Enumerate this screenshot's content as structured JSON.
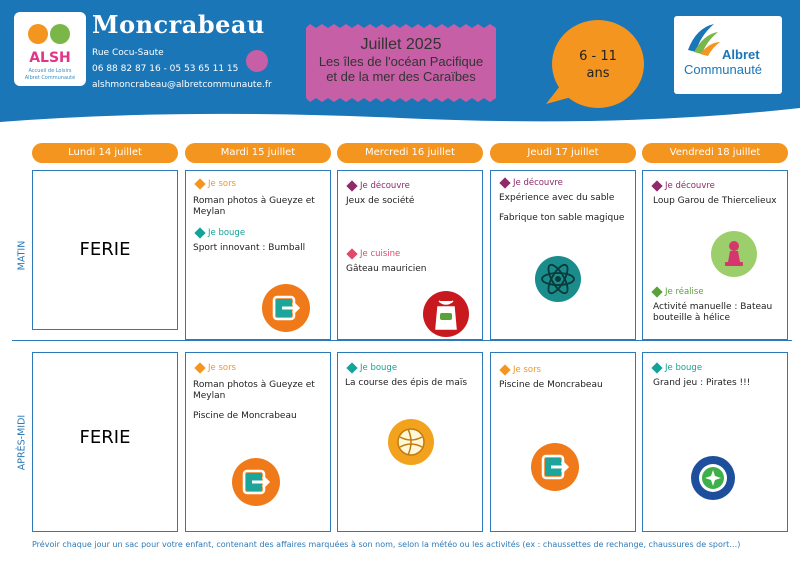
{
  "header": {
    "center_name": "Moncrabeau",
    "address": "Rue Cocu-Saute",
    "phones": "06 88 82 87 16 - 05 53 65 11 15",
    "email": "alshmoncrabeau@albretcommunaute.fr",
    "banner_line1": "Juillet 2025",
    "banner_line2": "Les îles de l'océan Pacifique",
    "banner_line3": "et de la mer des Caraïbes",
    "age_line1": "6 - 11",
    "age_line2": "ans",
    "alsh_logo_line1": "Accueil de Loisirs",
    "alsh_logo_line2": "Albret Communauté",
    "partner_logo_line1": "Albret",
    "partner_logo_line2": "Communauté"
  },
  "colors": {
    "header_blue": "#1b76b8",
    "orange": "#f3951e",
    "pink_banner": "#c65fa5",
    "border_blue": "#2e7ab8"
  },
  "rows": {
    "morning": "MATIN",
    "afternoon": "APRÈS-MIDI"
  },
  "days": [
    {
      "label": "Lundi 14 juillet"
    },
    {
      "label": "Mardi 15 juillet"
    },
    {
      "label": "Mercredi 16 juillet"
    },
    {
      "label": "Jeudi 17 juillet"
    },
    {
      "label": "Vendredi 18 juillet"
    }
  ],
  "cells": {
    "mon_am": {
      "ferie": "FERIE"
    },
    "mon_pm": {
      "ferie": "FERIE"
    },
    "tue_am": {
      "tag1": "Je sors",
      "act1": "Roman photos à Gueyze et Meylan",
      "tag2": "Je bouge",
      "act2": "Sport innovant : Bumball",
      "icon": "exit-door-icon"
    },
    "wed_am": {
      "tag1": "Je découvre",
      "act1": "Jeux de société",
      "tag2": "Je cuisine",
      "act2": "Gâteau mauricien",
      "icon": "apron-icon"
    },
    "thu_am": {
      "tag1": "Je découvre",
      "act1": "Expérience avec du sable",
      "act1b": "Fabrique ton sable magique",
      "icon": "atom-icon"
    },
    "fri_am": {
      "tag1": "Je découvre",
      "act1": "Loup Garou de Thiercelieux",
      "tag2": "Je réalise",
      "act2": "Activité manuelle : Bateau bouteille à hélice",
      "icon": "game-pawn-icon"
    },
    "tue_pm": {
      "tag1": "Je sors",
      "act1": "Roman photos à Gueyze et Meylan",
      "act1b": "Piscine de Moncrabeau",
      "icon": "exit-door-icon"
    },
    "wed_pm": {
      "tag1": "Je bouge",
      "act1": "La course des épis de maïs",
      "icon": "volleyball-icon"
    },
    "thu_pm": {
      "tag1": "Je sors",
      "act1": "Piscine de Moncrabeau",
      "icon": "exit-door-icon"
    },
    "fri_pm": {
      "tag1": "Je bouge",
      "act1": "Grand jeu : Pirates !!!",
      "icon": "compass-icon"
    }
  },
  "footer": "Prévoir chaque jour un sac pour votre enfant, contenant des affaires marquées à son nom, selon la météo ou les activités (ex : chaussettes de rechange, chaussures de sport…)"
}
